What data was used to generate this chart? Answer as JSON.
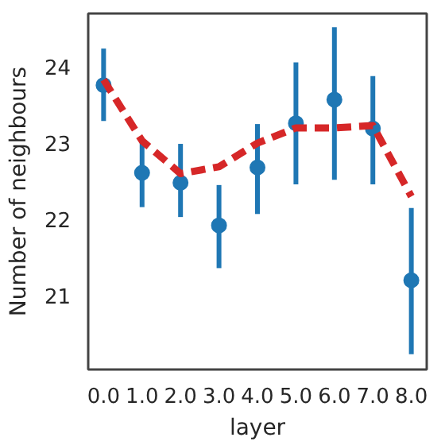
{
  "chart_data": {
    "type": "scatter",
    "xlabel": "layer",
    "ylabel": "Number of neighbours",
    "x": [
      0,
      1,
      2,
      3,
      4,
      5,
      6,
      7,
      8
    ],
    "xlim": [
      -0.4,
      8.4
    ],
    "xticks": [
      {
        "value": 0,
        "label": "0.0"
      },
      {
        "value": 1,
        "label": "1.0"
      },
      {
        "value": 2,
        "label": "2.0"
      },
      {
        "value": 3,
        "label": "3.0"
      },
      {
        "value": 4,
        "label": "4.0"
      },
      {
        "value": 5,
        "label": "5.0"
      },
      {
        "value": 6,
        "label": "6.0"
      },
      {
        "value": 7,
        "label": "7.0"
      },
      {
        "value": 8,
        "label": "8.0"
      }
    ],
    "ylim": [
      20.03,
      24.7
    ],
    "yticks": [
      21,
      22,
      23,
      24
    ],
    "grid": false,
    "series": [
      {
        "marker": "circle",
        "color": "#1f77b4",
        "values": [
          23.76,
          22.61,
          22.48,
          21.92,
          22.68,
          23.26,
          23.57,
          23.19,
          21.2
        ],
        "errors": [
          [
            23.29,
            24.24
          ],
          [
            22.16,
            23.01
          ],
          [
            22.03,
            22.99
          ],
          [
            21.36,
            22.45
          ],
          [
            22.07,
            23.25
          ],
          [
            22.46,
            24.06
          ],
          [
            22.52,
            24.52
          ],
          [
            22.46,
            23.88
          ],
          [
            20.23,
            22.15
          ]
        ]
      },
      {
        "type": "line",
        "color": "#d62728",
        "line_style": "dashed",
        "x": [
          0,
          1,
          2,
          3,
          4,
          5,
          6,
          7,
          8
        ],
        "values": [
          23.83,
          23.03,
          22.6,
          22.69,
          23.0,
          23.2,
          23.2,
          23.23,
          22.3
        ]
      }
    ]
  }
}
